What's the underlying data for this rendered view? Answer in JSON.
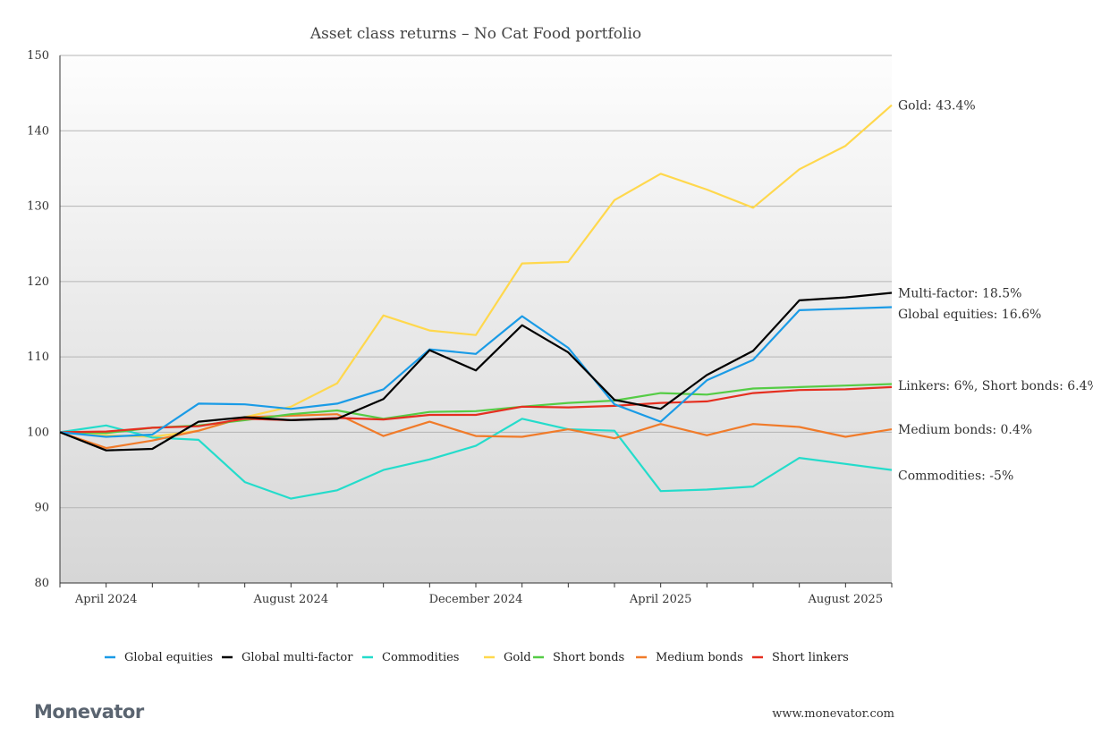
{
  "chart_data": {
    "type": "line",
    "title": "Asset class returns – No Cat Food portfolio",
    "xlabel": "",
    "ylabel": "",
    "ylim": [
      80,
      150
    ],
    "yticks": [
      80,
      90,
      100,
      110,
      120,
      130,
      140,
      150
    ],
    "x": [
      "2024-03",
      "2024-04",
      "2024-05",
      "2024-06",
      "2024-07",
      "2024-08",
      "2024-09",
      "2024-10",
      "2024-11",
      "2024-12",
      "2025-01",
      "2025-02",
      "2025-03",
      "2025-04",
      "2025-05",
      "2025-06",
      "2025-07",
      "2025-08",
      "2025-09"
    ],
    "xtick_labels": [
      {
        "label": "April 2024",
        "x": "2024-04"
      },
      {
        "label": "August 2024",
        "x": "2024-08"
      },
      {
        "label": "December 2024",
        "x": "2024-12"
      },
      {
        "label": "April 2025",
        "x": "2025-04"
      },
      {
        "label": "August 2025",
        "x": "2025-08"
      }
    ],
    "grid": true,
    "legend_position": "bottom",
    "series": [
      {
        "name": "Global equities",
        "color": "#1a9be6",
        "values": [
          100,
          99.4,
          99.7,
          103.8,
          103.7,
          103.1,
          103.8,
          105.7,
          111.0,
          110.4,
          115.4,
          111.2,
          103.7,
          101.4,
          106.9,
          109.6,
          116.2,
          116.4,
          116.6
        ]
      },
      {
        "name": "Global multi-factor",
        "color": "#000000",
        "values": [
          100,
          97.6,
          97.8,
          101.4,
          102.0,
          101.6,
          101.8,
          104.4,
          110.9,
          108.2,
          114.2,
          110.6,
          104.3,
          103.1,
          107.6,
          110.8,
          117.5,
          117.9,
          118.5
        ]
      },
      {
        "name": "Commodities",
        "color": "#24dccb",
        "values": [
          100,
          100.9,
          99.3,
          99.0,
          93.4,
          91.2,
          92.3,
          95.0,
          96.4,
          98.2,
          101.8,
          100.4,
          100.2,
          92.2,
          92.4,
          92.8,
          96.6,
          95.8,
          95.0
        ]
      },
      {
        "name": "Gold",
        "color": "#ffd84d",
        "values": [
          100,
          99.6,
          99.4,
          100.2,
          102.0,
          103.4,
          106.5,
          115.5,
          113.5,
          112.9,
          122.4,
          122.6,
          130.8,
          134.3,
          132.2,
          129.8,
          134.9,
          138.0,
          143.4
        ]
      },
      {
        "name": "Short bonds",
        "color": "#55cc45",
        "values": [
          100,
          99.9,
          100.6,
          100.9,
          101.6,
          102.4,
          102.9,
          101.8,
          102.7,
          102.8,
          103.4,
          103.9,
          104.2,
          105.2,
          105.0,
          105.8,
          106.0,
          106.2,
          106.4
        ]
      },
      {
        "name": "Medium bonds",
        "color": "#f07b2a",
        "values": [
          100,
          97.9,
          98.9,
          100.2,
          102.0,
          102.2,
          102.4,
          99.5,
          101.4,
          99.5,
          99.4,
          100.4,
          99.2,
          101.1,
          99.6,
          101.1,
          100.7,
          99.4,
          100.4
        ]
      },
      {
        "name": "Short linkers",
        "color": "#e52f20",
        "values": [
          100,
          100.1,
          100.6,
          100.8,
          101.8,
          101.6,
          101.9,
          101.7,
          102.3,
          102.3,
          103.4,
          103.3,
          103.5,
          103.9,
          104.1,
          105.2,
          105.6,
          105.7,
          106.0
        ]
      }
    ],
    "end_labels": [
      {
        "text": "Gold: 43.4%",
        "value": 143.4
      },
      {
        "text": "Multi-factor: 18.5%",
        "value": 118.5
      },
      {
        "text": "Global equities: 16.6%",
        "value": 115.7
      },
      {
        "text": "Linkers: 6%, Short bonds: 6.4%",
        "value": 106.2
      },
      {
        "text": "Medium bonds: 0.4%",
        "value": 100.4
      },
      {
        "text": "Commodities: -5%",
        "value": 94.3
      }
    ]
  },
  "footer": {
    "brand": "Monevator",
    "url": "www.monevator.com"
  }
}
